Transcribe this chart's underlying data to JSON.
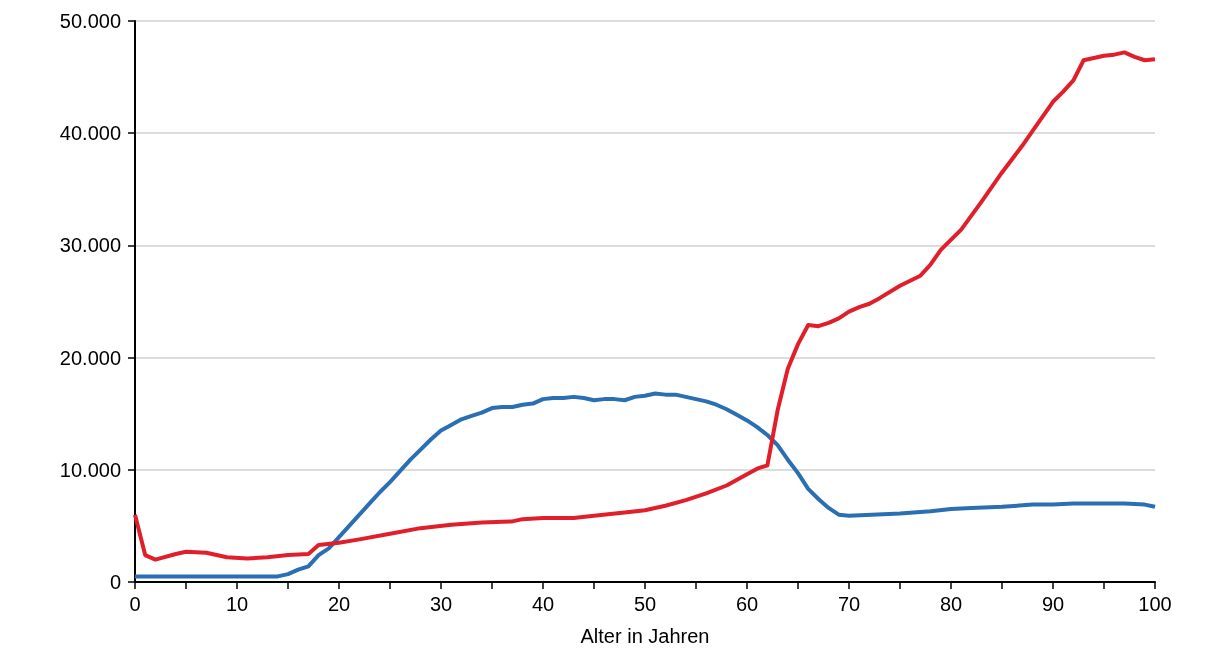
{
  "chart_data": {
    "type": "line",
    "xlabel": "Alter in Jahren",
    "xlim": [
      0,
      100
    ],
    "xticks": [
      0,
      {
        "value": 5,
        "label": null
      },
      10,
      {
        "value": 15,
        "label": null
      },
      20,
      {
        "value": 25,
        "label": null
      },
      30,
      {
        "value": 35,
        "label": null
      },
      40,
      {
        "value": 45,
        "label": null
      },
      50,
      {
        "value": 55,
        "label": null
      },
      60,
      {
        "value": 65,
        "label": null
      },
      70,
      {
        "value": 75,
        "label": null
      },
      80,
      {
        "value": 85,
        "label": null
      },
      90,
      {
        "value": 95,
        "label": null
      },
      100
    ],
    "ylim": [
      0,
      50000
    ],
    "yticks": [
      0,
      {
        "value": 10000,
        "label": "10.000"
      },
      {
        "value": 20000,
        "label": "20.000"
      },
      {
        "value": 30000,
        "label": "30.000"
      },
      {
        "value": 40000,
        "label": "40.000"
      },
      {
        "value": 50000,
        "label": "50.000"
      }
    ],
    "grid": "y",
    "marker": "none",
    "line_style": "solid",
    "series": [
      {
        "color": "#2a6fb3",
        "x": [
          0,
          14,
          15,
          16,
          17,
          18,
          19,
          20,
          21,
          22,
          23,
          24,
          25,
          26,
          27,
          28,
          29,
          30,
          31,
          32,
          33,
          34,
          35,
          36,
          37,
          38,
          39,
          40,
          41,
          42,
          43,
          44,
          45,
          46,
          47,
          48,
          49,
          50,
          51,
          52,
          53,
          54,
          55,
          56,
          57,
          58,
          59,
          60,
          61,
          62,
          63,
          64,
          65,
          66,
          67,
          68,
          69,
          70,
          75,
          78,
          80,
          82,
          85,
          88,
          90,
          92,
          95,
          97,
          99,
          100
        ],
        "values": [
          500,
          500,
          700,
          1100,
          1400,
          2400,
          3000,
          4000,
          5000,
          6000,
          7000,
          8000,
          8900,
          9900,
          10900,
          11800,
          12700,
          13500,
          14000,
          14500,
          14800,
          15100,
          15500,
          15600,
          15600,
          15800,
          15900,
          16300,
          16400,
          16400,
          16500,
          16400,
          16200,
          16300,
          16300,
          16200,
          16500,
          16600,
          16800,
          16700,
          16700,
          16500,
          16300,
          16100,
          15800,
          15400,
          14900,
          14400,
          13800,
          13100,
          12200,
          10900,
          9700,
          8300,
          7400,
          6600,
          6000,
          5900,
          6100,
          6300,
          6500,
          6600,
          6700,
          6900,
          6900,
          7000,
          7000,
          7000,
          6900,
          6700
        ]
      },
      {
        "color": "#e11f2b",
        "x": [
          0,
          1,
          2,
          4,
          5,
          7,
          9,
          11,
          13,
          15,
          17,
          18,
          20,
          22,
          25,
          28,
          31,
          34,
          37,
          38,
          40,
          43,
          45,
          48,
          50,
          52,
          54,
          56,
          58,
          60,
          61,
          62,
          63,
          64,
          65,
          66,
          67,
          68,
          69,
          70,
          71,
          72,
          73,
          75,
          77,
          78,
          79,
          81,
          83,
          85,
          87,
          88,
          89,
          90,
          91,
          92,
          93,
          95,
          96,
          97,
          98,
          99,
          100
        ],
        "values": [
          6000,
          2400,
          2000,
          2500,
          2700,
          2600,
          2200,
          2100,
          2200,
          2400,
          2500,
          3300,
          3500,
          3800,
          4300,
          4800,
          5100,
          5300,
          5400,
          5600,
          5700,
          5700,
          5900,
          6200,
          6400,
          6800,
          7300,
          7900,
          8600,
          9600,
          10100,
          10400,
          15300,
          19000,
          21200,
          22900,
          22800,
          23100,
          23500,
          24100,
          24500,
          24800,
          25300,
          26400,
          27300,
          28300,
          29600,
          31400,
          33900,
          36500,
          38900,
          40200,
          41500,
          42800,
          43700,
          44700,
          46500,
          46900,
          47000,
          47200,
          46800,
          46500,
          46600
        ]
      }
    ]
  }
}
